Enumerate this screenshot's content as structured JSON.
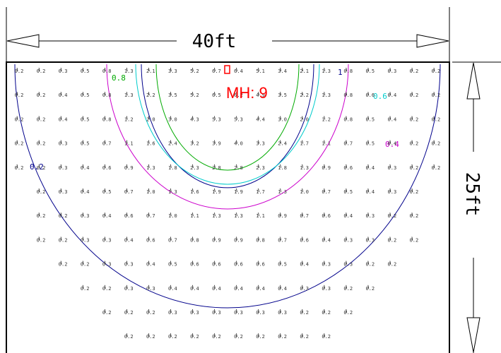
{
  "dimensions": {
    "width_label": "40ft",
    "height_label": "25ft"
  },
  "fixture": {
    "label": "MH: 9",
    "color": "#ff0000"
  },
  "contours": [
    {
      "level": "1",
      "color": "#00008b"
    },
    {
      "level": "0.8",
      "color": "#00aa00"
    },
    {
      "level": "0.6",
      "color": "#00cccc"
    },
    {
      "level": "0.4",
      "color": "#cc00cc"
    },
    {
      "level": "0.2",
      "color": "#00008b"
    }
  ],
  "grid": {
    "rows": [
      [
        "0.2",
        "0.2",
        "0.3",
        "0.5",
        "0.8",
        "1.3",
        "2.1",
        "3.3",
        "5.2",
        "6.7",
        "6.4",
        "5.1",
        "3.4",
        "2.1",
        "1.3",
        "0.8",
        "0.5",
        "0.3",
        "0.2",
        "0.2"
      ],
      [
        "0.2",
        "0.2",
        "0.4",
        "0.5",
        "0.8",
        "1.3",
        "2.2",
        "3.5",
        "5.2",
        "6.5",
        "6.2",
        "4.9",
        "3.5",
        "2.2",
        "1.3",
        "0.8",
        "0.6",
        "0.4",
        "0.2",
        "0.2"
      ],
      [
        "0.2",
        "0.2",
        "0.4",
        "0.5",
        "0.8",
        "1.2",
        "2.0",
        "3.0",
        "4.3",
        "5.3",
        "5.3",
        "4.4",
        "3.0",
        "2.0",
        "1.2",
        "0.8",
        "0.5",
        "0.4",
        "0.2",
        "0.2"
      ],
      [
        "0.2",
        "0.2",
        "0.3",
        "0.5",
        "0.7",
        "1.1",
        "1.6",
        "2.4",
        "3.2",
        "3.9",
        "4.0",
        "3.3",
        "2.4",
        "1.7",
        "1.1",
        "0.7",
        "0.5",
        "0.4",
        "0.2",
        "0.2"
      ],
      [
        "0.2",
        "0.2",
        "0.3",
        "0.4",
        "0.6",
        "0.9",
        "1.3",
        "1.8",
        "2.3",
        "2.8",
        "2.8",
        "2.3",
        "1.8",
        "1.3",
        "0.9",
        "0.6",
        "0.4",
        "0.3",
        "0.2",
        "0.2"
      ],
      [
        "",
        "0.2",
        "0.3",
        "0.4",
        "0.5",
        "0.7",
        "1.0",
        "1.3",
        "1.6",
        "1.9",
        "1.9",
        "1.7",
        "1.3",
        "1.0",
        "0.7",
        "0.5",
        "0.4",
        "0.3",
        "0.2",
        ""
      ],
      [
        "",
        "0.2",
        "0.2",
        "0.3",
        "0.4",
        "0.6",
        "0.7",
        "1.0",
        "1.1",
        "1.3",
        "1.3",
        "1.1",
        "0.9",
        "0.7",
        "0.6",
        "0.4",
        "0.3",
        "0.2",
        "0.2",
        ""
      ],
      [
        "",
        "0.2",
        "0.2",
        "0.3",
        "0.3",
        "0.4",
        "0.6",
        "0.7",
        "0.8",
        "0.9",
        "0.9",
        "0.8",
        "0.7",
        "0.6",
        "0.4",
        "0.3",
        "0.3",
        "0.2",
        "0.2",
        ""
      ],
      [
        "",
        "",
        "0.2",
        "0.2",
        "0.3",
        "0.3",
        "0.4",
        "0.5",
        "0.6",
        "0.6",
        "0.6",
        "0.6",
        "0.5",
        "0.4",
        "0.3",
        "0.3",
        "0.2",
        "0.2",
        "",
        ""
      ],
      [
        "",
        "",
        "",
        "0.2",
        "0.2",
        "0.3",
        "0.3",
        "0.4",
        "0.4",
        "0.4",
        "0.4",
        "0.4",
        "0.4",
        "0.3",
        "0.3",
        "0.2",
        "0.2",
        "",
        "",
        ""
      ],
      [
        "",
        "",
        "",
        "",
        "0.2",
        "0.2",
        "0.2",
        "0.3",
        "0.3",
        "0.3",
        "0.3",
        "0.3",
        "0.3",
        "0.2",
        "0.2",
        "0.2",
        "",
        "",
        "",
        ""
      ],
      [
        "",
        "",
        "",
        "",
        "",
        "0.2",
        "0.2",
        "0.2",
        "0.2",
        "0.2",
        "0.2",
        "0.2",
        "0.2",
        "0.2",
        "0.2",
        "",
        "",
        "",
        "",
        ""
      ],
      [
        "",
        "",
        "",
        "",
        "",
        "",
        "",
        "0.2",
        "0.2",
        "0.2",
        "0.2",
        "0.2",
        "0.2",
        "",
        "",
        "",
        "",
        "",
        "",
        ""
      ]
    ]
  }
}
